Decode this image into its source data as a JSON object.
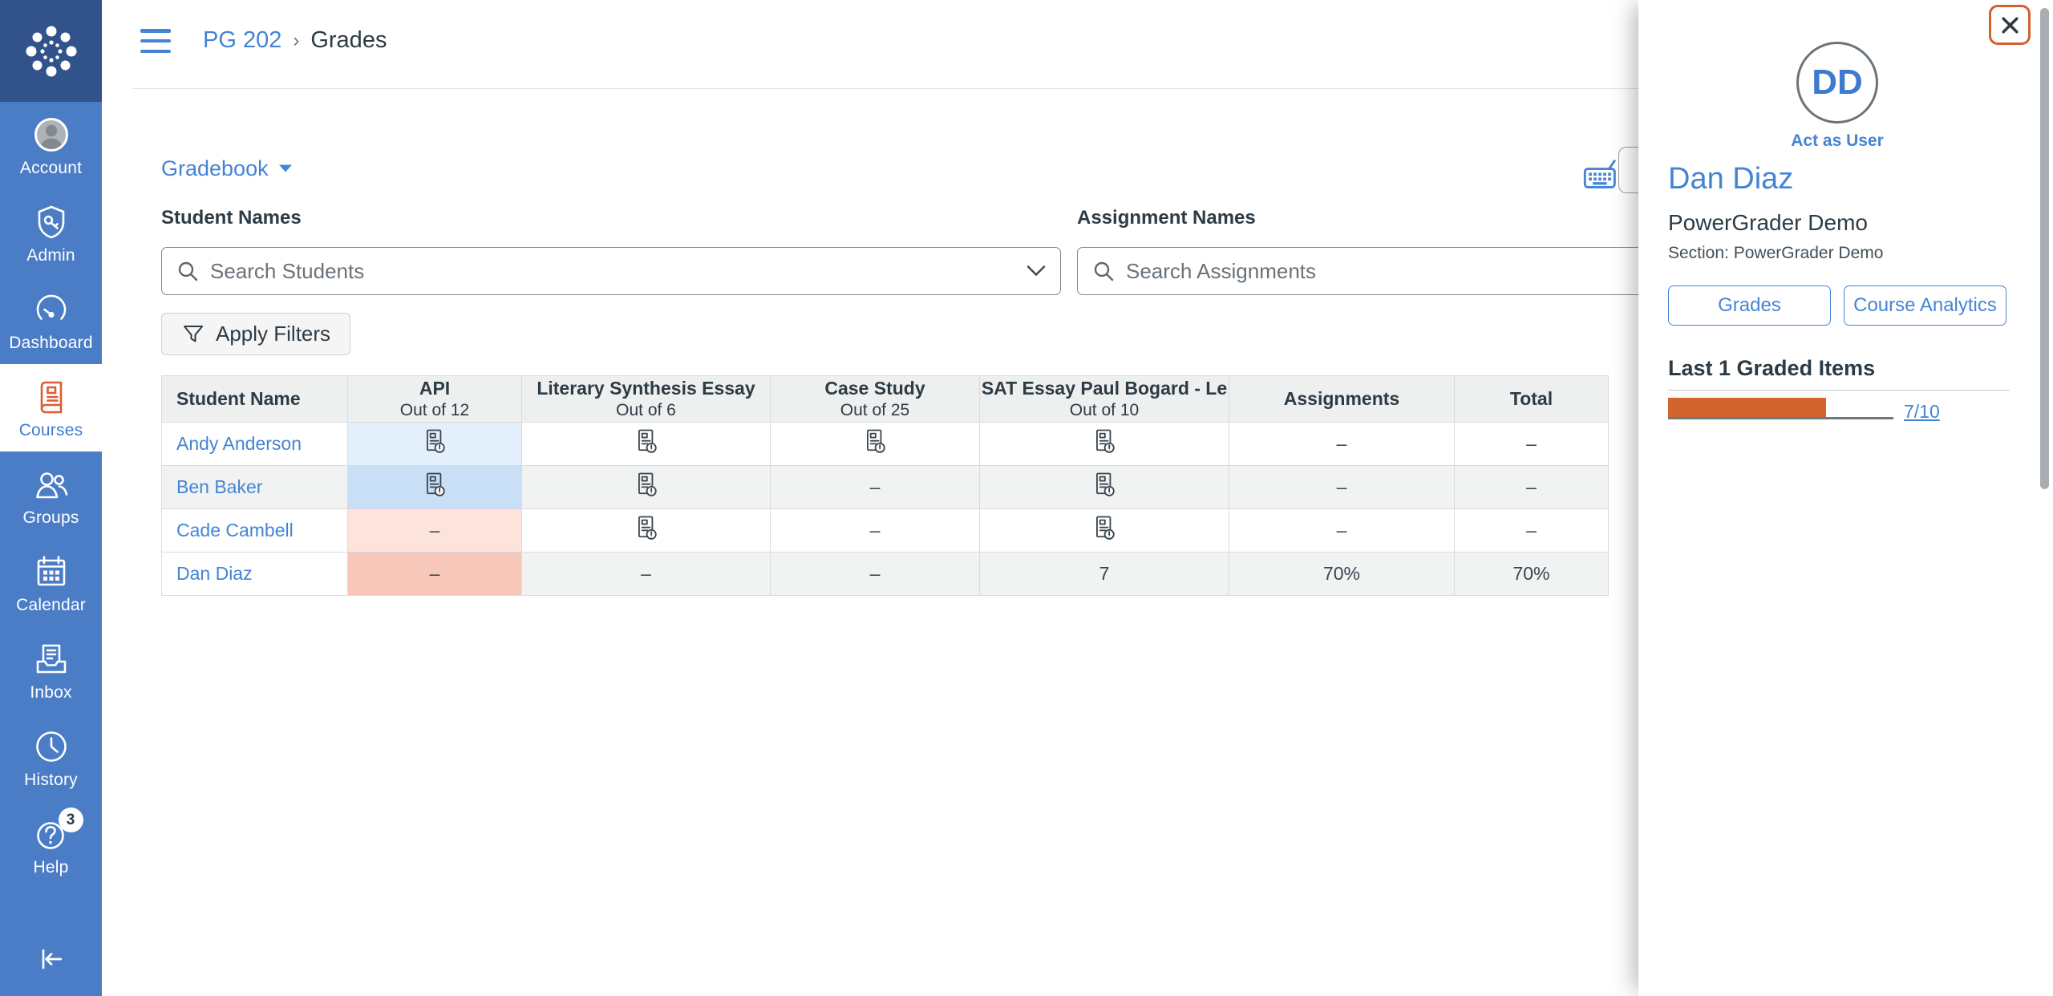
{
  "breadcrumb": {
    "course": "PG 202",
    "separator": "›",
    "page": "Grades"
  },
  "sidebar": {
    "items": [
      {
        "id": "account",
        "label": "Account",
        "icon": "avatar-icon"
      },
      {
        "id": "admin",
        "label": "Admin",
        "icon": "shield-key-icon"
      },
      {
        "id": "dashboard",
        "label": "Dashboard",
        "icon": "gauge-icon"
      },
      {
        "id": "courses",
        "label": "Courses",
        "icon": "book-icon",
        "active": true
      },
      {
        "id": "groups",
        "label": "Groups",
        "icon": "people-icon"
      },
      {
        "id": "calendar",
        "label": "Calendar",
        "icon": "calendar-icon"
      },
      {
        "id": "inbox",
        "label": "Inbox",
        "icon": "inbox-icon"
      },
      {
        "id": "history",
        "label": "History",
        "icon": "clock-icon"
      },
      {
        "id": "help",
        "label": "Help",
        "icon": "question-icon",
        "badge": "3"
      }
    ]
  },
  "toolbar": {
    "gradebook_label": "Gradebook"
  },
  "filters": {
    "student_label": "Student Names",
    "student_placeholder": "Search Students",
    "assignment_label": "Assignment Names",
    "assignment_placeholder": "Search Assignments",
    "apply_label": "Apply Filters"
  },
  "table": {
    "columns": [
      {
        "title": "Student Name",
        "subtitle": ""
      },
      {
        "title": "API",
        "subtitle": "Out of 12"
      },
      {
        "title": "Literary Synthesis Essay",
        "subtitle": "Out of 6"
      },
      {
        "title": "Case Study",
        "subtitle": "Out of 25"
      },
      {
        "title": "SAT Essay Paul Bogard - Le",
        "subtitle": "Out of 10"
      },
      {
        "title": "Assignments",
        "subtitle": ""
      },
      {
        "title": "Total",
        "subtitle": ""
      }
    ],
    "rows": [
      {
        "name": "Andy Anderson",
        "selected": false,
        "cells": [
          {
            "c": "icon",
            "bg": "bl"
          },
          {
            "c": "icon"
          },
          {
            "c": "icon"
          },
          {
            "c": "icon"
          },
          {
            "c": "text",
            "v": "–"
          },
          {
            "c": "text",
            "v": "–"
          }
        ]
      },
      {
        "name": "Ben Baker",
        "selected": false,
        "cells": [
          {
            "c": "icon",
            "bg": "b"
          },
          {
            "c": "icon"
          },
          {
            "c": "text",
            "v": "–"
          },
          {
            "c": "icon"
          },
          {
            "c": "text",
            "v": "–"
          },
          {
            "c": "text",
            "v": "–"
          }
        ]
      },
      {
        "name": "Cade Cambell",
        "selected": false,
        "cells": [
          {
            "c": "text",
            "v": "–",
            "bg": "pl"
          },
          {
            "c": "icon"
          },
          {
            "c": "text",
            "v": "–"
          },
          {
            "c": "icon"
          },
          {
            "c": "text",
            "v": "–"
          },
          {
            "c": "text",
            "v": "–"
          }
        ]
      },
      {
        "name": "Dan Diaz",
        "selected": true,
        "cells": [
          {
            "c": "text",
            "v": "–",
            "bg": "p"
          },
          {
            "c": "text",
            "v": "–"
          },
          {
            "c": "text",
            "v": "–"
          },
          {
            "c": "text",
            "v": "7"
          },
          {
            "c": "text",
            "v": "70%"
          },
          {
            "c": "text",
            "v": "70%"
          }
        ]
      }
    ]
  },
  "tray": {
    "initials": "DD",
    "act_as_label": "Act as User",
    "student_name": "Dan Diaz",
    "course_name": "PowerGrader Demo",
    "section_line": "Section: PowerGrader Demo",
    "buttons": [
      "Grades",
      "Course Analytics"
    ],
    "graded_heading": "Last 1 Graded Items",
    "graded_link": "7/10",
    "progress_pct": 70
  },
  "colors": {
    "sidebar_bg": "#4b7dc7",
    "logo_bg": "#31528a",
    "accent_blue": "#4584d4",
    "ink": "#2d3b45",
    "orange": "#d2642e",
    "courses_icon_orange": "#de5b33",
    "cell_blue_light": "#e3effb",
    "cell_blue": "#c9dff6",
    "cell_pink_light": "#fce4dd",
    "cell_pink": "#f7c7ba",
    "row_stripe": "#f1f2f2",
    "header_bg": "#eeefef"
  }
}
